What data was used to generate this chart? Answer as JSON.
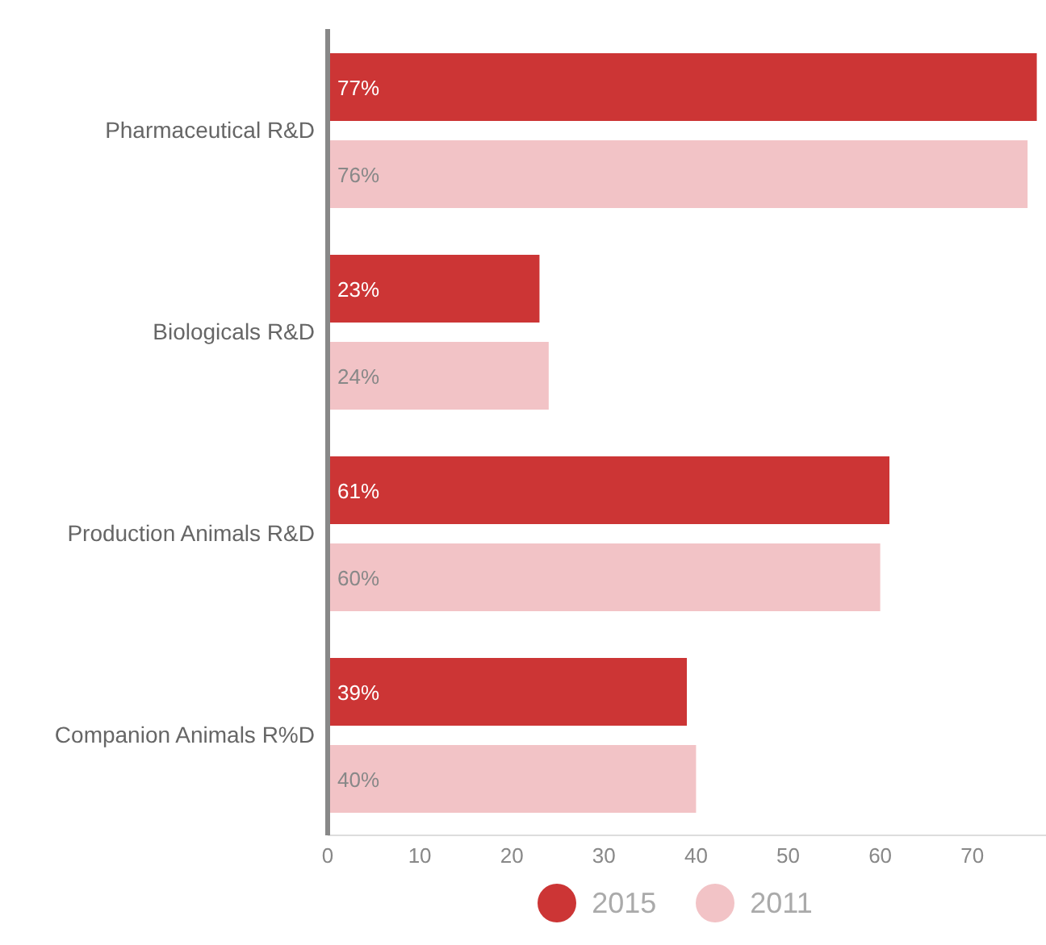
{
  "chart_data": {
    "type": "bar",
    "orientation": "horizontal",
    "categories": [
      "Pharmaceutical R&D",
      "Biologicals R&D",
      "Production Animals R&D",
      "Companion Animals R%D"
    ],
    "series": [
      {
        "name": "2015",
        "color": "#cc3535",
        "values": [
          77,
          23,
          61,
          39
        ],
        "value_labels": [
          "77%",
          "23%",
          "61%",
          "39%"
        ]
      },
      {
        "name": "2011",
        "color": "#f2c3c6",
        "values": [
          76,
          24,
          60,
          40
        ],
        "value_labels": [
          "76%",
          "24%",
          "60%",
          "40%"
        ]
      }
    ],
    "xlim": [
      0,
      78
    ],
    "xticks": [
      0,
      10,
      20,
      30,
      40,
      50,
      60,
      70
    ],
    "legend": "bottom"
  }
}
